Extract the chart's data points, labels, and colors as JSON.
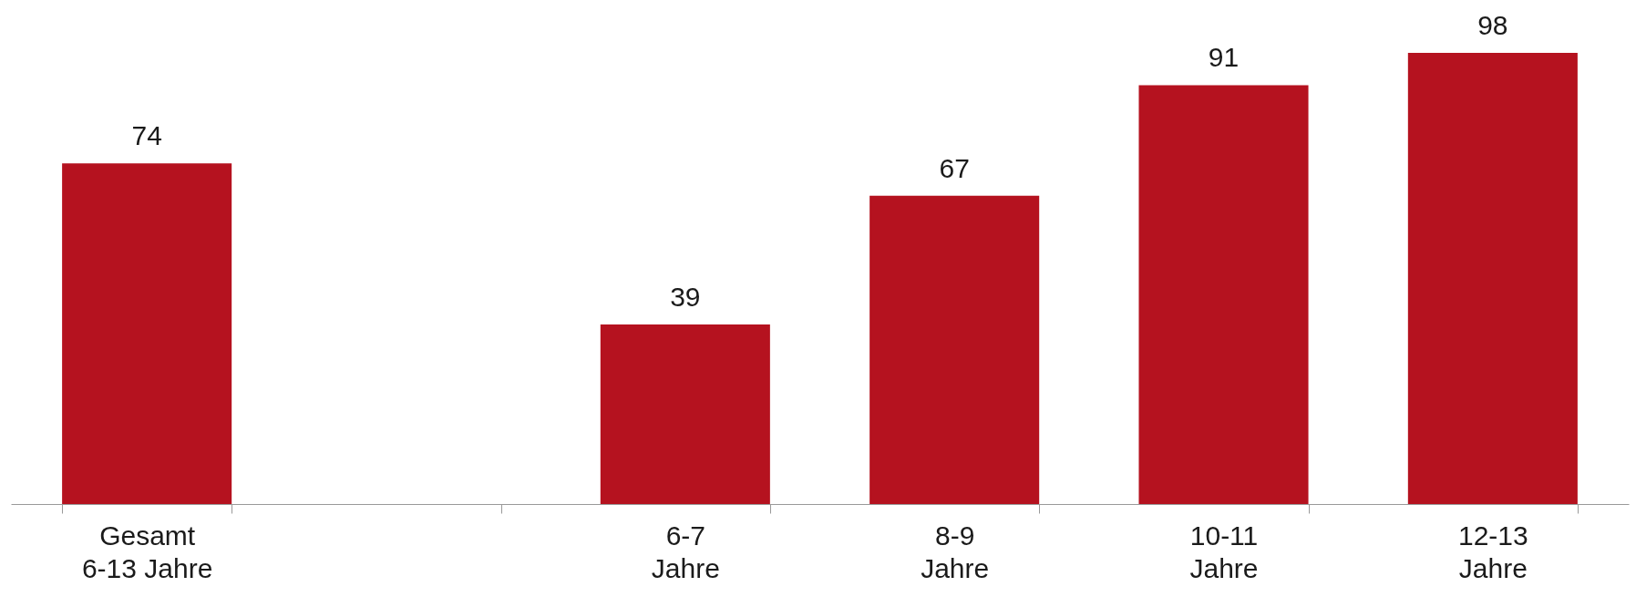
{
  "chart_data": {
    "type": "bar",
    "categories": [
      "Gesamt\n6-13 Jahre",
      null,
      "6-7\nJahre",
      "8-9\nJahre",
      "10-11\nJahre",
      "12-13\nJahre"
    ],
    "values": [
      74,
      null,
      39,
      67,
      91,
      98
    ],
    "color": "#b5121f",
    "data_labels": true,
    "grid": false
  }
}
